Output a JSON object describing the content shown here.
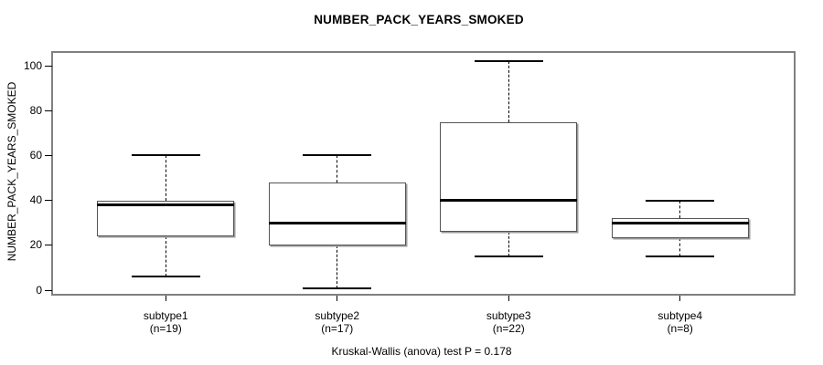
{
  "title": "NUMBER_PACK_YEARS_SMOKED",
  "footer": "Kruskal-Wallis (anova) test P = 0.178",
  "colors": {
    "frame_gray": "#808080",
    "box_border": "#555555",
    "box_shadow": "#9a9a9a",
    "line_black": "#000000",
    "background": "#ffffff"
  },
  "chart_data": {
    "type": "boxplot",
    "title": "NUMBER_PACK_YEARS_SMOKED",
    "ylabel": "NUMBER_PACK_YEARS_SMOKED",
    "xlabel": "",
    "annotation": "Kruskal-Wallis (anova) test P = 0.178",
    "y_ticks": [
      0,
      20,
      40,
      60,
      80,
      100
    ],
    "ylim": [
      -2.2,
      105.7
    ],
    "grid": false,
    "legend": "none",
    "whisker_style": "dashed",
    "groups": [
      {
        "label": "subtype1",
        "n_label": "(n=19)",
        "n": 19,
        "whisker_low": 6,
        "q1": 24,
        "median": 38,
        "q3": 40,
        "whisker_high": 60
      },
      {
        "label": "subtype2",
        "n_label": "(n=17)",
        "n": 17,
        "whisker_low": 1,
        "q1": 20,
        "median": 30,
        "q3": 48,
        "whisker_high": 60
      },
      {
        "label": "subtype3",
        "n_label": "(n=22)",
        "n": 22,
        "whisker_low": 15,
        "q1": 26,
        "median": 40,
        "q3": 75,
        "whisker_high": 102
      },
      {
        "label": "subtype4",
        "n_label": "(n=8)",
        "n": 8,
        "whisker_low": 15,
        "q1": 23,
        "median": 30,
        "q3": 32,
        "whisker_high": 40
      }
    ]
  }
}
